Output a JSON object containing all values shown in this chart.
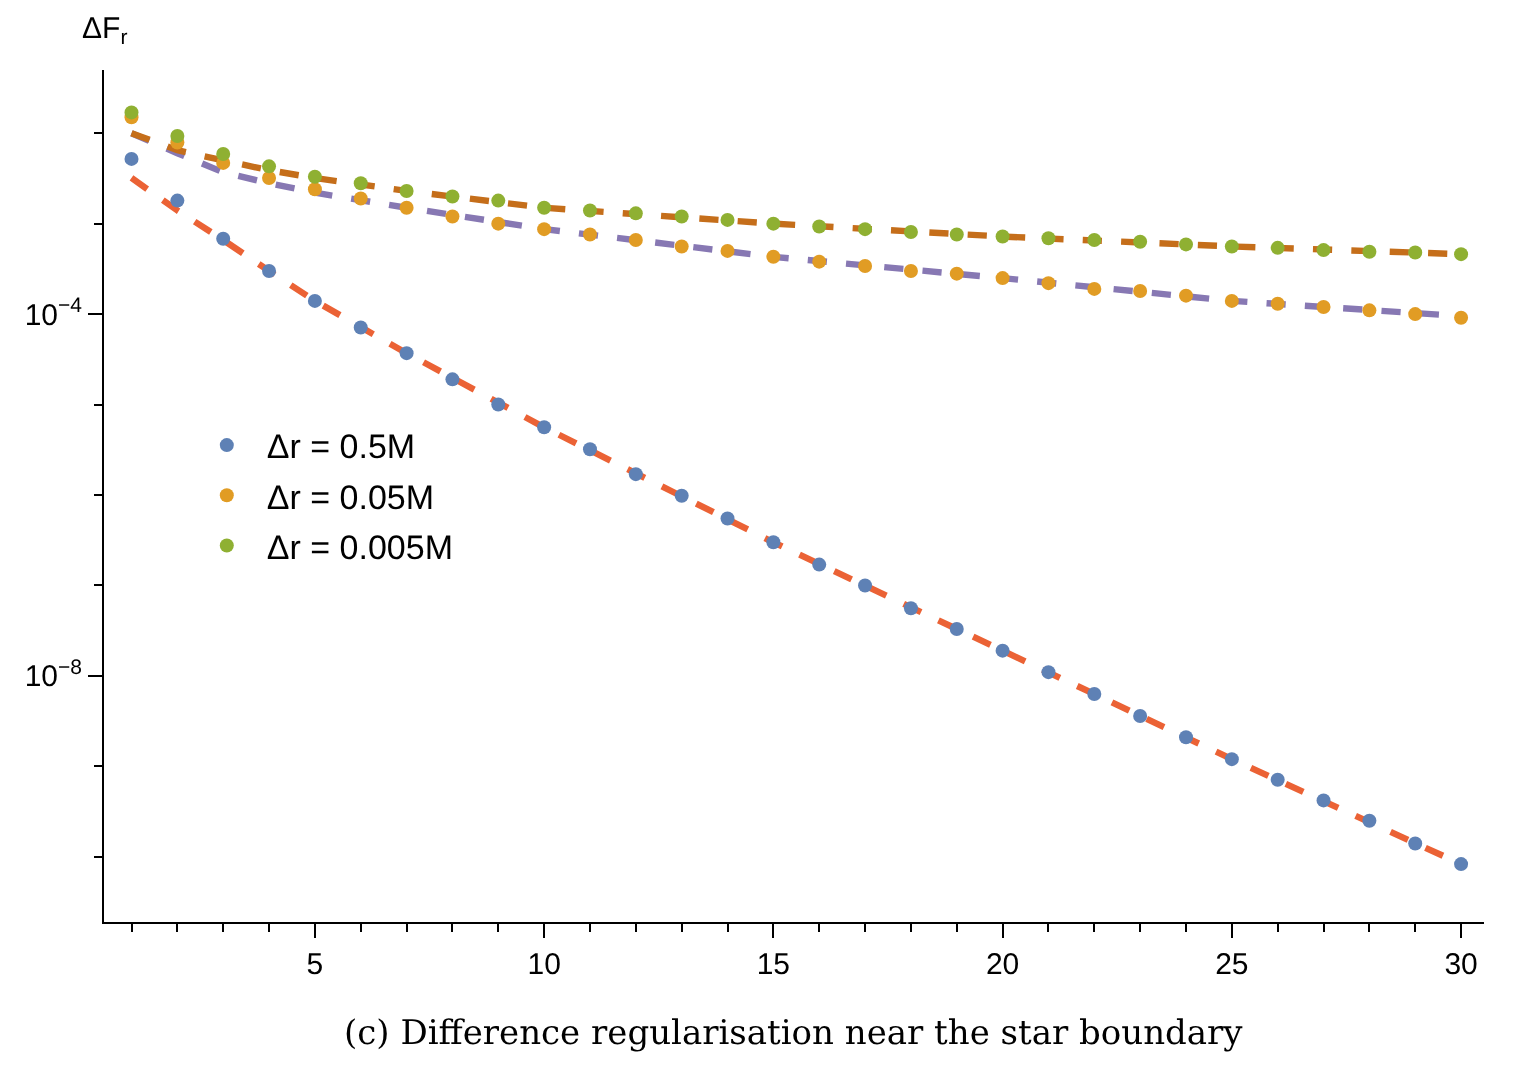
{
  "chart_data": {
    "type": "scatter",
    "title": "(c) Difference regularisation near the star boundary",
    "ylabel": "ΔF$_{r}$",
    "log": "y",
    "legend": "left",
    "xlim": [
      0.4,
      30.5
    ],
    "xticks": [
      {
        "value": 1,
        "label": null
      },
      {
        "value": 2,
        "label": null
      },
      {
        "value": 3,
        "label": null
      },
      {
        "value": 4,
        "label": null
      },
      5,
      {
        "value": 6,
        "label": null
      },
      {
        "value": 7,
        "label": null
      },
      {
        "value": 8,
        "label": null
      },
      {
        "value": 9,
        "label": null
      },
      10,
      {
        "value": 11,
        "label": null
      },
      {
        "value": 12,
        "label": null
      },
      {
        "value": 13,
        "label": null
      },
      {
        "value": 14,
        "label": null
      },
      15,
      {
        "value": 16,
        "label": null
      },
      {
        "value": 17,
        "label": null
      },
      {
        "value": 18,
        "label": null
      },
      {
        "value": 19,
        "label": null
      },
      20,
      {
        "value": 21,
        "label": null
      },
      {
        "value": 22,
        "label": null
      },
      {
        "value": 23,
        "label": null
      },
      {
        "value": 24,
        "label": null
      },
      25,
      {
        "value": 26,
        "label": null
      },
      {
        "value": 27,
        "label": null
      },
      {
        "value": 28,
        "label": null
      },
      {
        "value": 29,
        "label": null
      },
      30
    ],
    "ylim": [
      1.9e-11,
      0.05
    ],
    "yticks": [
      {
        "value": 0.01,
        "label": null
      },
      {
        "value": 0.001,
        "label": null
      },
      {
        "value": 0.0001,
        "label": "10$^{−4}$"
      },
      {
        "value": 1e-05,
        "label": null
      },
      {
        "value": 1e-06,
        "label": null
      },
      {
        "value": 1e-07,
        "label": null
      },
      {
        "value": 1e-08,
        "label": "10$^{−8}$"
      },
      {
        "value": 1e-09,
        "label": null
      },
      {
        "value": 1e-10,
        "label": null
      }
    ],
    "x": [
      1,
      2,
      3,
      4,
      5,
      6,
      7,
      8,
      9,
      10,
      11,
      12,
      13,
      14,
      15,
      16,
      17,
      18,
      19,
      20,
      21,
      22,
      23,
      24,
      25,
      26,
      27,
      28,
      29,
      30
    ],
    "series": [
      {
        "type": "line",
        "line_style": "dashed",
        "marker": "none",
        "color": "#eb6235",
        "x": [
          1,
          2,
          3,
          4,
          5,
          7,
          10,
          15,
          20,
          25,
          30
        ],
        "values": [
          0.0032,
          0.0014,
          0.00066,
          0.0003,
          0.00014,
          3.7e-05,
          5.6e-06,
          3e-07,
          1.9e-08,
          1.2e-09,
          8.3e-11
        ]
      },
      {
        "type": "line",
        "line_style": "dashed",
        "marker": "none",
        "color": "#8778b3",
        "x": [
          1,
          2,
          3,
          4,
          5,
          7,
          10,
          15,
          20,
          25,
          30
        ],
        "values": [
          0.01,
          0.006,
          0.0037,
          0.0028,
          0.0022,
          0.0015,
          0.00087,
          0.00043,
          0.00025,
          0.00014,
          9.5e-05
        ]
      },
      {
        "type": "line",
        "line_style": "dashed",
        "marker": "none",
        "color": "#c56e1a",
        "x": [
          1,
          2,
          3,
          4,
          5,
          7,
          10,
          15,
          20,
          25,
          30
        ],
        "values": [
          0.01,
          0.0065,
          0.005,
          0.0039,
          0.0032,
          0.0023,
          0.0015,
          0.001,
          0.00072,
          0.00056,
          0.00046
        ]
      },
      {
        "name": "Δr = 0.5M",
        "type": "scatter",
        "marker": "circle",
        "color": "#5e81b5",
        "values": [
          0.0052,
          0.0018,
          0.00068,
          0.0003,
          0.00014,
          7.1e-05,
          3.7e-05,
          1.9e-05,
          1e-05,
          5.6e-06,
          3.2e-06,
          1.7e-06,
          9.8e-07,
          5.5e-07,
          3e-07,
          1.7e-07,
          1e-07,
          5.6e-08,
          3.3e-08,
          1.9e-08,
          1.1e-08,
          6.3e-09,
          3.6e-09,
          2.1e-09,
          1.2e-09,
          7.1e-10,
          4.2e-10,
          2.5e-10,
          1.4e-10,
          8.3e-11
        ]
      },
      {
        "name": "Δr = 0.05M",
        "type": "scatter",
        "marker": "circle",
        "color": "#e19c24",
        "values": [
          0.015,
          0.0079,
          0.0047,
          0.0032,
          0.0024,
          0.0019,
          0.0015,
          0.0012,
          0.001,
          0.00087,
          0.00076,
          0.00066,
          0.00056,
          0.0005,
          0.00043,
          0.00038,
          0.00034,
          0.0003,
          0.00028,
          0.00025,
          0.00022,
          0.00019,
          0.00018,
          0.00016,
          0.00014,
          0.00013,
          0.00012,
          0.00011,
          0.0001,
          9.1e-05
        ]
      },
      {
        "name": "Δr = 0.005M",
        "type": "scatter",
        "marker": "circle",
        "color": "#8fb032",
        "values": [
          0.017,
          0.0093,
          0.0059,
          0.0043,
          0.0033,
          0.0028,
          0.0023,
          0.002,
          0.0018,
          0.0015,
          0.0014,
          0.0013,
          0.0012,
          0.0011,
          0.001,
          0.00093,
          0.00087,
          0.00081,
          0.00076,
          0.00072,
          0.00069,
          0.00066,
          0.00063,
          0.00059,
          0.00056,
          0.00054,
          0.00051,
          0.00049,
          0.00048,
          0.00046
        ]
      }
    ]
  }
}
